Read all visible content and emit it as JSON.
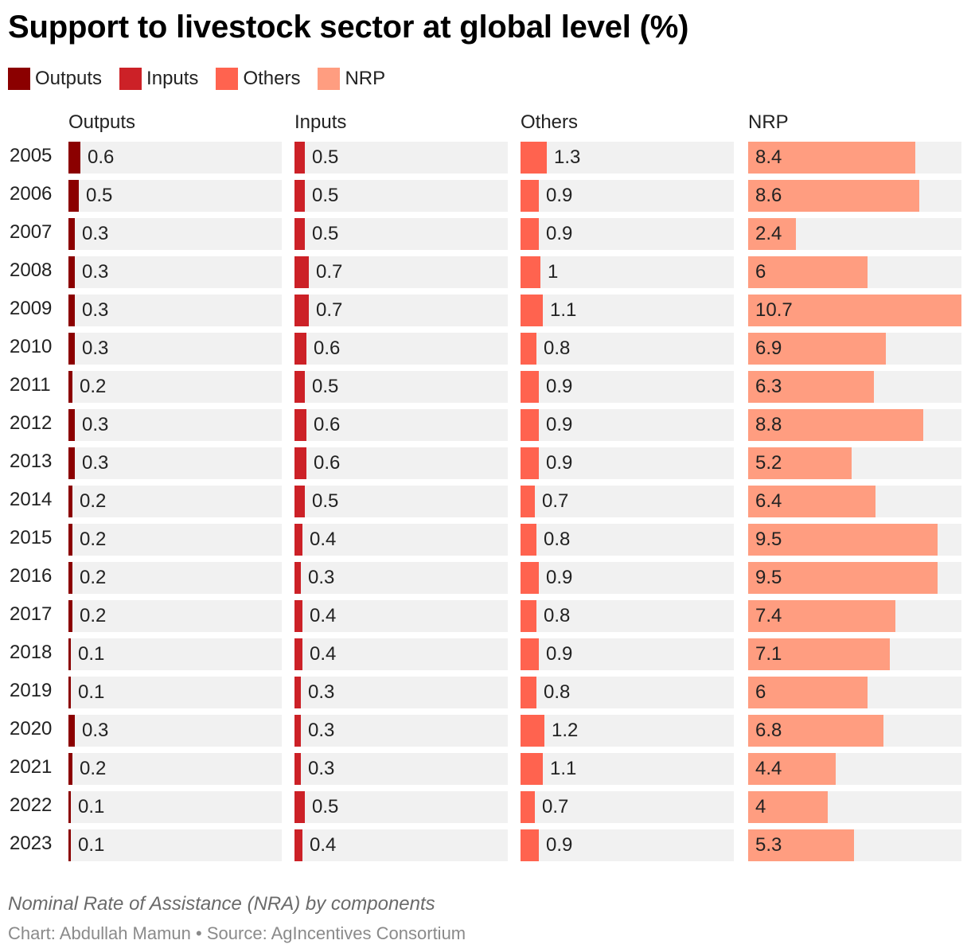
{
  "chart_data": {
    "type": "bar",
    "title": "Support to livestock sector at global level (%)",
    "subtitle": "Nominal Rate of Assistance (NRA) by components",
    "credits": {
      "chart_by": "Chart: Abdullah Mamun",
      "separator": "•",
      "source": "Source: AgIncentives Consortium"
    },
    "categories": [
      "2005",
      "2006",
      "2007",
      "2008",
      "2009",
      "2010",
      "2011",
      "2012",
      "2013",
      "2014",
      "2015",
      "2016",
      "2017",
      "2018",
      "2019",
      "2020",
      "2021",
      "2022",
      "2023"
    ],
    "series": [
      {
        "name": "Outputs",
        "color": "#8b0000",
        "values": [
          0.6,
          0.5,
          0.3,
          0.3,
          0.3,
          0.3,
          0.2,
          0.3,
          0.3,
          0.2,
          0.2,
          0.2,
          0.2,
          0.1,
          0.1,
          0.3,
          0.2,
          0.1,
          0.1
        ]
      },
      {
        "name": "Inputs",
        "color": "#cc2127",
        "values": [
          0.5,
          0.5,
          0.5,
          0.7,
          0.7,
          0.6,
          0.5,
          0.6,
          0.6,
          0.5,
          0.4,
          0.3,
          0.4,
          0.4,
          0.3,
          0.3,
          0.3,
          0.5,
          0.4
        ]
      },
      {
        "name": "Others",
        "color": "#ff634f",
        "values": [
          1.3,
          0.9,
          0.9,
          1,
          1.1,
          0.8,
          0.9,
          0.9,
          0.9,
          0.7,
          0.8,
          0.9,
          0.8,
          0.9,
          0.8,
          1.2,
          1.1,
          0.7,
          0.9
        ]
      },
      {
        "name": "NRP",
        "color": "#ff9d80",
        "values": [
          8.4,
          8.6,
          2.4,
          6,
          10.7,
          6.9,
          6.3,
          8.8,
          5.2,
          6.4,
          9.5,
          9.5,
          7.4,
          7.1,
          6,
          6.8,
          4.4,
          4,
          5.3
        ]
      }
    ],
    "panel_xlim": [
      0,
      10.7
    ],
    "legend_position": "top-left"
  }
}
